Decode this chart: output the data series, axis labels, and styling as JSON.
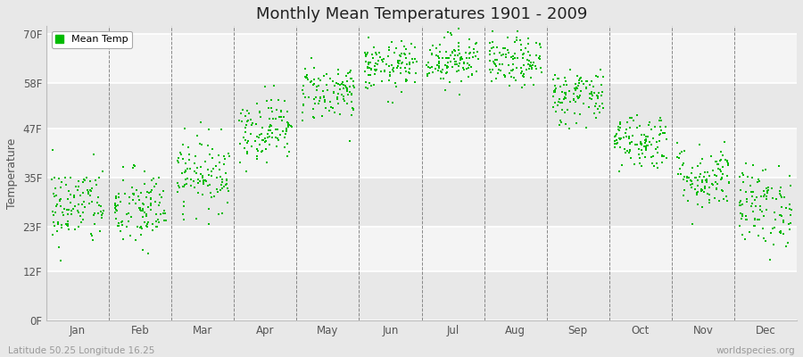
{
  "title": "Monthly Mean Temperatures 1901 - 2009",
  "ylabel": "Temperature",
  "subtitle_left": "Latitude 50.25 Longitude 16.25",
  "subtitle_right": "worldspecies.org",
  "legend_label": "Mean Temp",
  "dot_color": "#00bb00",
  "background_color": "#e8e8e8",
  "plot_bg_color": "#e8e8e8",
  "yticks": [
    0,
    12,
    23,
    35,
    47,
    58,
    70
  ],
  "ytick_labels": [
    "0F",
    "12F",
    "23F",
    "35F",
    "47F",
    "58F",
    "70F"
  ],
  "months": [
    "Jan",
    "Feb",
    "Mar",
    "Apr",
    "May",
    "Jun",
    "Jul",
    "Aug",
    "Sep",
    "Oct",
    "Nov",
    "Dec"
  ],
  "num_years": 109,
  "seed": 42,
  "monthly_means_F": [
    28,
    27,
    36,
    47,
    56,
    62,
    64,
    63,
    55,
    44,
    35,
    28
  ],
  "monthly_stds_F": [
    5.0,
    5.0,
    4.5,
    4.0,
    3.5,
    3.0,
    3.0,
    3.0,
    3.5,
    3.5,
    4.0,
    5.0
  ],
  "band_colors": [
    "#e8e8e8",
    "#f4f4f4"
  ],
  "figsize": [
    9.0,
    4.0
  ],
  "dpi": 100
}
